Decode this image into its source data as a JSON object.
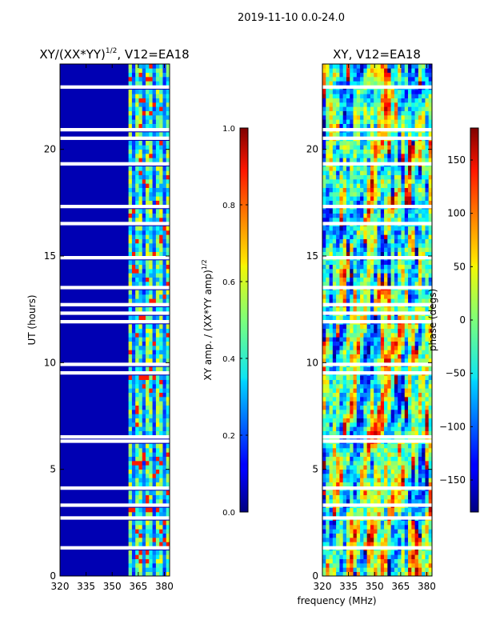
{
  "suptitle": "2019-11-10 0.0-24.0",
  "chart_data": [
    {
      "type": "heatmap",
      "title_main": "XY/(XX*YY)",
      "title_sup": "1/2",
      "title_tail": ", V12=EA18",
      "ylabel": "UT (hours)",
      "xlim": [
        320,
        383
      ],
      "ylim": [
        0,
        24
      ],
      "x_ticks": [
        320,
        335,
        350,
        365,
        380
      ],
      "y_ticks": [
        0,
        5,
        10,
        15,
        20
      ],
      "colorbar": {
        "label": "XY amp. / (XX*YY amp)",
        "label_sup": "1/2",
        "range": [
          0.0,
          1.0
        ],
        "ticks": [
          "0.0",
          "0.2",
          "0.4",
          "0.6",
          "0.8",
          "1.0"
        ],
        "colormap": "jet"
      },
      "description_values": {
        "background_level": 0.05,
        "active_band_mhz": [
          360,
          383
        ],
        "active_band_level": 0.45,
        "bright_channel_level": 0.85
      }
    },
    {
      "type": "heatmap",
      "title": "XY, V12=EA18",
      "xlabel": "frequency (MHz)",
      "xlim": [
        320,
        383
      ],
      "ylim": [
        0,
        24
      ],
      "x_ticks": [
        320,
        335,
        350,
        365,
        380
      ],
      "y_ticks": [
        0,
        5,
        10,
        15,
        20
      ],
      "colorbar": {
        "label": "phase (degs)",
        "range": [
          -180,
          180
        ],
        "ticks": [
          "150",
          "100",
          "50",
          "0",
          "−50",
          "−100",
          "−150"
        ],
        "tick_values": [
          150,
          100,
          50,
          0,
          -50,
          -100,
          -150
        ],
        "colormap": "jet"
      }
    }
  ]
}
